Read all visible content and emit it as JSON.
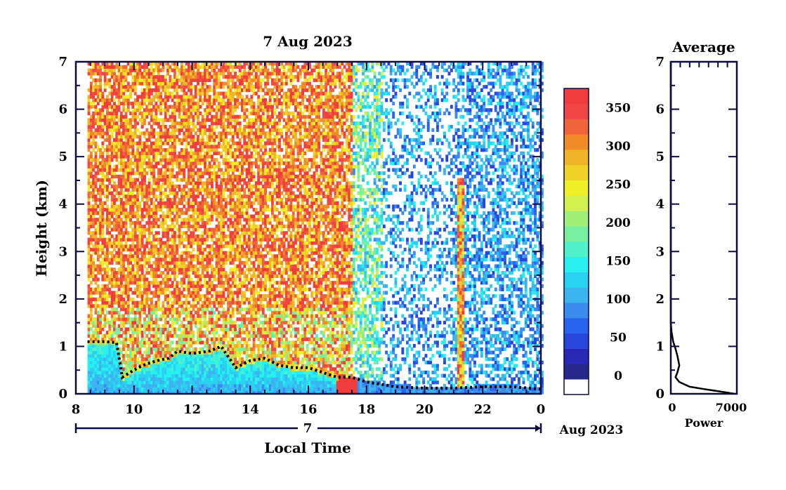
{
  "chart_data": [
    {
      "type": "heatmap",
      "title": "7 Aug 2023",
      "xlabel": "Local Time",
      "ylabel": "Height (km)",
      "x_ticks": [
        "8",
        "10",
        "12",
        "14",
        "16",
        "18",
        "20",
        "22",
        "0"
      ],
      "x_tick_values": [
        8,
        10,
        12,
        14,
        16,
        18,
        20,
        22,
        24
      ],
      "xlim": [
        8,
        24
      ],
      "data_start_hour": 8.4,
      "y_ticks": [
        "0",
        "1",
        "2",
        "3",
        "4",
        "5",
        "6",
        "7"
      ],
      "ylim": [
        0,
        7
      ],
      "date_bar": {
        "day_label": "7",
        "month_label": "Aug 2023"
      },
      "colorbar": {
        "ticks": [
          "0",
          "50",
          "100",
          "150",
          "200",
          "250",
          "300",
          "350"
        ],
        "tick_values": [
          0,
          50,
          100,
          150,
          200,
          250,
          300,
          350
        ],
        "range": [
          -25,
          375
        ],
        "colors": [
          "#ffffff",
          "#28288c",
          "#2828b4",
          "#2846dc",
          "#2864f0",
          "#3c8cf0",
          "#3cb4f0",
          "#28d2f0",
          "#28f0f0",
          "#50f0c8",
          "#78f0a0",
          "#a0f078",
          "#d2f050",
          "#f0f028",
          "#f0d228",
          "#f0b428",
          "#f08c28",
          "#f0643c",
          "#f04646",
          "#f03c3c"
        ]
      },
      "boundary_layer_top_km": [
        [
          8.4,
          1.1
        ],
        [
          9.0,
          1.1
        ],
        [
          9.4,
          1.08
        ],
        [
          9.6,
          0.35
        ],
        [
          10.0,
          0.5
        ],
        [
          10.3,
          0.6
        ],
        [
          10.8,
          0.7
        ],
        [
          11.2,
          0.75
        ],
        [
          11.5,
          0.9
        ],
        [
          12.0,
          0.85
        ],
        [
          12.6,
          0.9
        ],
        [
          13.0,
          1.0
        ],
        [
          13.5,
          0.55
        ],
        [
          14.0,
          0.7
        ],
        [
          14.5,
          0.75
        ],
        [
          15.0,
          0.6
        ],
        [
          15.5,
          0.55
        ],
        [
          16.0,
          0.55
        ],
        [
          16.5,
          0.45
        ],
        [
          17.0,
          0.35
        ],
        [
          17.5,
          0.35
        ],
        [
          18.0,
          0.25
        ],
        [
          18.5,
          0.2
        ],
        [
          19.0,
          0.15
        ],
        [
          20.0,
          0.12
        ],
        [
          21.0,
          0.12
        ],
        [
          22.0,
          0.15
        ],
        [
          23.0,
          0.15
        ],
        [
          24.0,
          0.1
        ]
      ]
    },
    {
      "type": "line",
      "title": "Average",
      "xlabel": "Power",
      "ylabel": "",
      "x_ticks": [
        "0",
        "7000"
      ],
      "x_tick_values": [
        0,
        7000
      ],
      "xlim": [
        0,
        7000
      ],
      "y_ticks": [
        "0",
        "1",
        "2",
        "3",
        "4",
        "5",
        "6",
        "7"
      ],
      "ylim": [
        0,
        7
      ],
      "series": [
        {
          "x": [
            6800,
            5200,
            3500,
            2000,
            900,
            500,
            700,
            900,
            700,
            500,
            250,
            80,
            0,
            0,
            0
          ],
          "y": [
            0.0,
            0.05,
            0.1,
            0.15,
            0.25,
            0.35,
            0.45,
            0.6,
            0.8,
            0.95,
            1.1,
            1.3,
            1.5,
            2.0,
            7.0
          ]
        }
      ]
    }
  ]
}
